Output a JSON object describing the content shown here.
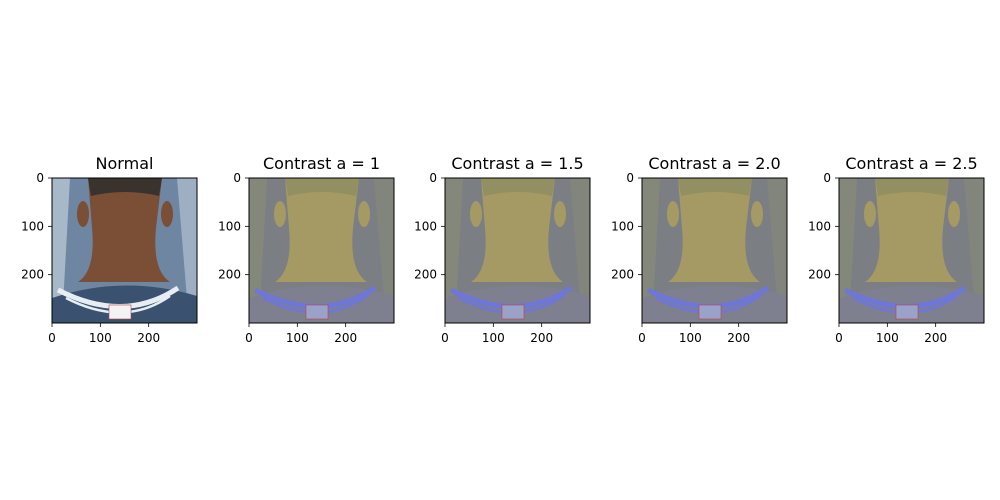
{
  "figure": {
    "background": "#ffffff"
  },
  "chart_data": [
    {
      "type": "image",
      "title": "Normal",
      "xlim": [
        0,
        300
      ],
      "ylim": [
        300,
        0
      ],
      "x_ticks": [
        0,
        100,
        200
      ],
      "y_ticks": [
        0,
        100,
        200
      ],
      "x_tick_labels": [
        "0",
        "100",
        "200"
      ],
      "y_tick_labels": [
        "0",
        "100",
        "200"
      ],
      "palette": {
        "background": "#6f86a2",
        "border": "#d6e2ea",
        "skin": "#7a4f36",
        "hair": "#2b2a2a",
        "shirt": "#3a5270",
        "collar": "#e6eef3",
        "tag": "#f3f3f3"
      }
    },
    {
      "type": "image",
      "title": "Contrast a = 1",
      "xlim": [
        0,
        300
      ],
      "ylim": [
        300,
        0
      ],
      "x_ticks": [
        0,
        100,
        200
      ],
      "y_ticks": [
        0,
        100,
        200
      ],
      "x_tick_labels": [
        "0",
        "100",
        "200"
      ],
      "y_tick_labels": [
        "0",
        "100",
        "200"
      ],
      "palette": {
        "background": "#7b7f84",
        "border": "#8c8f72",
        "skin": "#a59a63",
        "hair": "#8d8c63",
        "shirt": "#7e7f8f",
        "collar": "#6e76d8",
        "tag": "#9aa2c8"
      }
    },
    {
      "type": "image",
      "title": "Contrast a = 1.5",
      "xlim": [
        0,
        300
      ],
      "ylim": [
        300,
        0
      ],
      "x_ticks": [
        0,
        100,
        200
      ],
      "y_ticks": [
        0,
        100,
        200
      ],
      "x_tick_labels": [
        "0",
        "100",
        "200"
      ],
      "y_tick_labels": [
        "0",
        "100",
        "200"
      ],
      "palette": {
        "background": "#7b7f84",
        "border": "#8c8f72",
        "skin": "#a59a63",
        "hair": "#8d8c63",
        "shirt": "#7e7f8f",
        "collar": "#6e76d8",
        "tag": "#9aa2c8"
      }
    },
    {
      "type": "image",
      "title": "Contrast a = 2.0",
      "xlim": [
        0,
        300
      ],
      "ylim": [
        300,
        0
      ],
      "x_ticks": [
        0,
        100,
        200
      ],
      "y_ticks": [
        0,
        100,
        200
      ],
      "x_tick_labels": [
        "0",
        "100",
        "200"
      ],
      "y_tick_labels": [
        "0",
        "100",
        "200"
      ],
      "palette": {
        "background": "#7b7f84",
        "border": "#8c8f72",
        "skin": "#a59a63",
        "hair": "#8d8c63",
        "shirt": "#7e7f8f",
        "collar": "#6e76d8",
        "tag": "#9aa2c8"
      }
    },
    {
      "type": "image",
      "title": "Contrast a = 2.5",
      "xlim": [
        0,
        300
      ],
      "ylim": [
        300,
        0
      ],
      "x_ticks": [
        0,
        100,
        200
      ],
      "y_ticks": [
        0,
        100,
        200
      ],
      "x_tick_labels": [
        "0",
        "100",
        "200"
      ],
      "y_tick_labels": [
        "0",
        "100",
        "200"
      ],
      "palette": {
        "background": "#7b7f84",
        "border": "#8c8f72",
        "skin": "#a59a63",
        "hair": "#8d8c63",
        "shirt": "#7e7f8f",
        "collar": "#6e76d8",
        "tag": "#9aa2c8"
      }
    }
  ]
}
